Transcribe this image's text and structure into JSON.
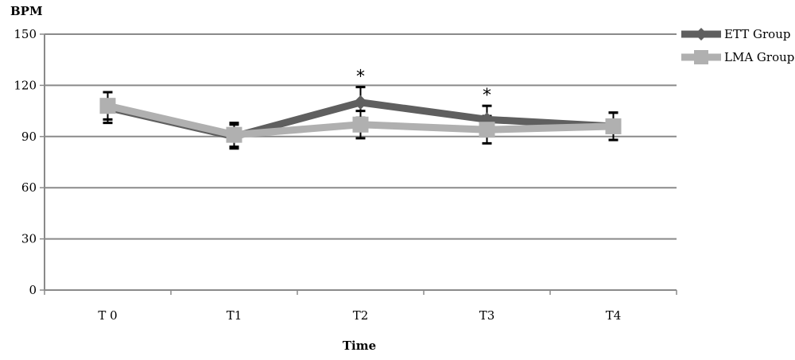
{
  "chart_data": {
    "type": "line",
    "ylabel": "BPM",
    "xlabel": "Time",
    "categories": [
      "T 0",
      "T1",
      "T2",
      "T3",
      "T4"
    ],
    "ylim": [
      0,
      150
    ],
    "yticks": [
      0,
      30,
      60,
      90,
      120,
      150
    ],
    "grid": true,
    "legend_position": "top-right",
    "series": [
      {
        "name": "ETT Group",
        "color": "#5f5f5f",
        "marker": "diamond",
        "values": [
          107,
          90,
          110,
          100,
          96
        ],
        "error": [
          9,
          7,
          9,
          8,
          8
        ]
      },
      {
        "name": "LMA Group",
        "color": "#b0b0b0",
        "marker": "square",
        "values": [
          108,
          91,
          97,
          94,
          96
        ],
        "error": [
          8,
          7,
          8,
          8,
          8
        ]
      }
    ],
    "annotations": [
      {
        "category": "T2",
        "text": "*"
      },
      {
        "category": "T3",
        "text": "*"
      }
    ]
  }
}
